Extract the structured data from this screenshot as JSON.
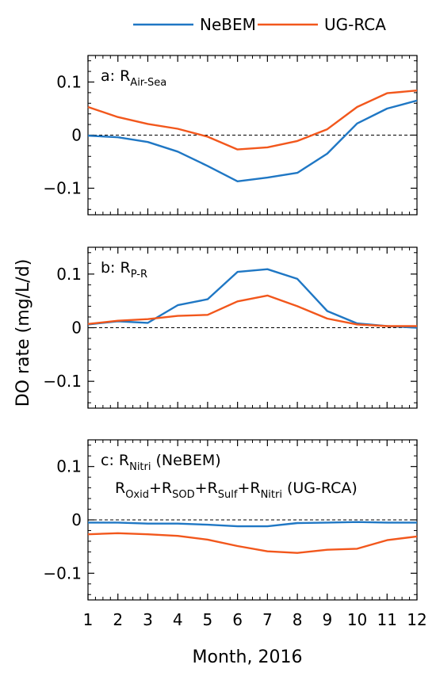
{
  "legend": {
    "items": [
      {
        "name": "NeBEM",
        "color": "#1f77c4"
      },
      {
        "name": "UG-RCA",
        "color": "#f2571c"
      }
    ]
  },
  "axes": {
    "ylabel": "DO rate (mg/L/d)",
    "xlabel": "Month, 2016",
    "x_tick_labels": [
      "1",
      "2",
      "3",
      "4",
      "5",
      "6",
      "7",
      "8",
      "9",
      "10",
      "11",
      "12"
    ],
    "y_tick_labels": [
      "0.1",
      "0",
      "−0.1"
    ]
  },
  "panels": [
    {
      "label_prefix": "a: R",
      "label_sub": "Air-Sea",
      "extra_line": []
    },
    {
      "label_prefix": "b: R",
      "label_sub": "P-R",
      "extra_line": []
    },
    {
      "label_prefix": "c: R",
      "label_sub": "Nitri",
      "label_suffix": " (NeBEM)",
      "extra_line": [
        {
          "t": "R",
          "s": "Oxid"
        },
        {
          "t": "+R",
          "s": "SOD"
        },
        {
          "t": "+R",
          "s": "Sulf"
        },
        {
          "t": "+R",
          "s": "Nitri"
        },
        {
          "t": " (UG-RCA)",
          "s": ""
        }
      ]
    }
  ],
  "chart_data": [
    {
      "type": "line",
      "title": "a: R Air-Sea",
      "x": [
        1,
        2,
        3,
        4,
        5,
        6,
        7,
        8,
        9,
        10,
        11,
        12
      ],
      "xlim": [
        1,
        12
      ],
      "ylim": [
        -0.15,
        0.15
      ],
      "y_ticks": [
        -0.1,
        0,
        0.1
      ],
      "zero_line": "dashed",
      "series": [
        {
          "name": "NeBEM",
          "color": "#1f77c4",
          "values": [
            -0.001,
            -0.004,
            -0.013,
            -0.031,
            -0.058,
            -0.087,
            -0.08,
            -0.071,
            -0.035,
            0.022,
            0.05,
            0.065
          ]
        },
        {
          "name": "UG-RCA",
          "color": "#f2571c",
          "values": [
            0.053,
            0.034,
            0.021,
            0.012,
            -0.003,
            -0.027,
            -0.023,
            -0.011,
            0.011,
            0.053,
            0.079,
            0.084
          ]
        }
      ]
    },
    {
      "type": "line",
      "title": "b: R P-R",
      "x": [
        1,
        2,
        3,
        4,
        5,
        6,
        7,
        8,
        9,
        10,
        11,
        12
      ],
      "xlim": [
        1,
        12
      ],
      "ylim": [
        -0.15,
        0.15
      ],
      "y_ticks": [
        -0.1,
        0,
        0.1
      ],
      "zero_line": "dashed",
      "series": [
        {
          "name": "NeBEM",
          "color": "#1f77c4",
          "values": [
            0.006,
            0.012,
            0.009,
            0.042,
            0.053,
            0.104,
            0.109,
            0.091,
            0.031,
            0.008,
            0.003,
            0.0
          ]
        },
        {
          "name": "UG-RCA",
          "color": "#f2571c",
          "values": [
            0.007,
            0.013,
            0.016,
            0.022,
            0.024,
            0.049,
            0.06,
            0.04,
            0.017,
            0.006,
            0.003,
            0.003
          ]
        }
      ]
    },
    {
      "type": "line",
      "title": "c: R Nitri (NeBEM) / ROxid+RSOD+RSulf+RNitri (UG-RCA)",
      "x": [
        1,
        2,
        3,
        4,
        5,
        6,
        7,
        8,
        9,
        10,
        11,
        12
      ],
      "xlim": [
        1,
        12
      ],
      "ylim": [
        -0.15,
        0.15
      ],
      "y_ticks": [
        -0.1,
        0,
        0.1
      ],
      "zero_line": "dashed",
      "series": [
        {
          "name": "NeBEM",
          "color": "#1f77c4",
          "values": [
            -0.005,
            -0.005,
            -0.007,
            -0.007,
            -0.009,
            -0.012,
            -0.012,
            -0.006,
            -0.005,
            -0.004,
            -0.005,
            -0.005
          ]
        },
        {
          "name": "UG-RCA",
          "color": "#f2571c",
          "values": [
            -0.027,
            -0.025,
            -0.027,
            -0.03,
            -0.037,
            -0.049,
            -0.059,
            -0.062,
            -0.056,
            -0.054,
            -0.038,
            -0.031
          ]
        }
      ]
    }
  ]
}
